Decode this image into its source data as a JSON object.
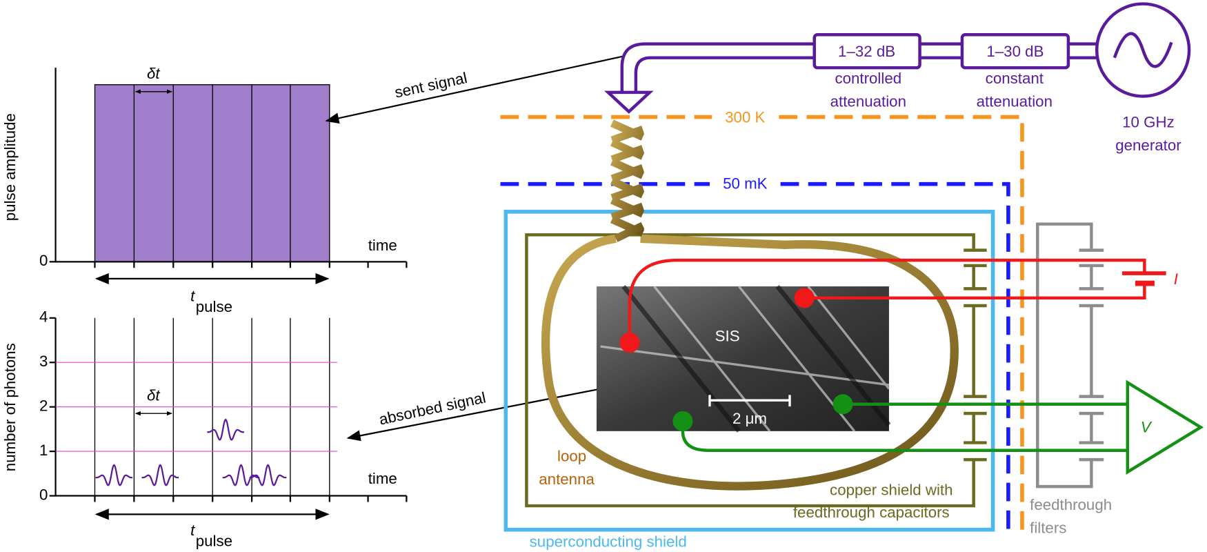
{
  "top_panel": {
    "y_label": "pulse amplitude",
    "y_ticks": [
      0
    ],
    "x_label": "time",
    "delta": "δt",
    "t_label": "t",
    "t_sub": "pulse"
  },
  "bottom_panel": {
    "y_label": "number of photons",
    "y_ticks": [
      0,
      1,
      2,
      3,
      4
    ],
    "x_label": "time",
    "delta": "δt",
    "t_label": "t",
    "t_sub": "pulse"
  },
  "arrows": {
    "sent": "sent signal",
    "absorbed": "absorbed signal"
  },
  "setup": {
    "attenuator_1": {
      "value": "1–32 dB",
      "line1": "controlled",
      "line2": "attenuation"
    },
    "attenuator_2": {
      "value": "1–30 dB",
      "line1": "constant",
      "line2": "attenuation"
    },
    "generator": {
      "line1": "10 GHz",
      "line2": "generator"
    },
    "stage_300k": "300 K",
    "stage_50mk": "50 mK",
    "sis": "SIS",
    "scale_bar": "2 μm",
    "loop": {
      "line1": "loop",
      "line2": "antenna"
    },
    "copper": {
      "line1": "copper shield with",
      "line2": "feedthrough capacitors"
    },
    "sc_shield": "superconducting shield",
    "filters": {
      "line1": "feedthrough",
      "line2": "filters"
    },
    "current": "I",
    "voltage": "V"
  }
}
